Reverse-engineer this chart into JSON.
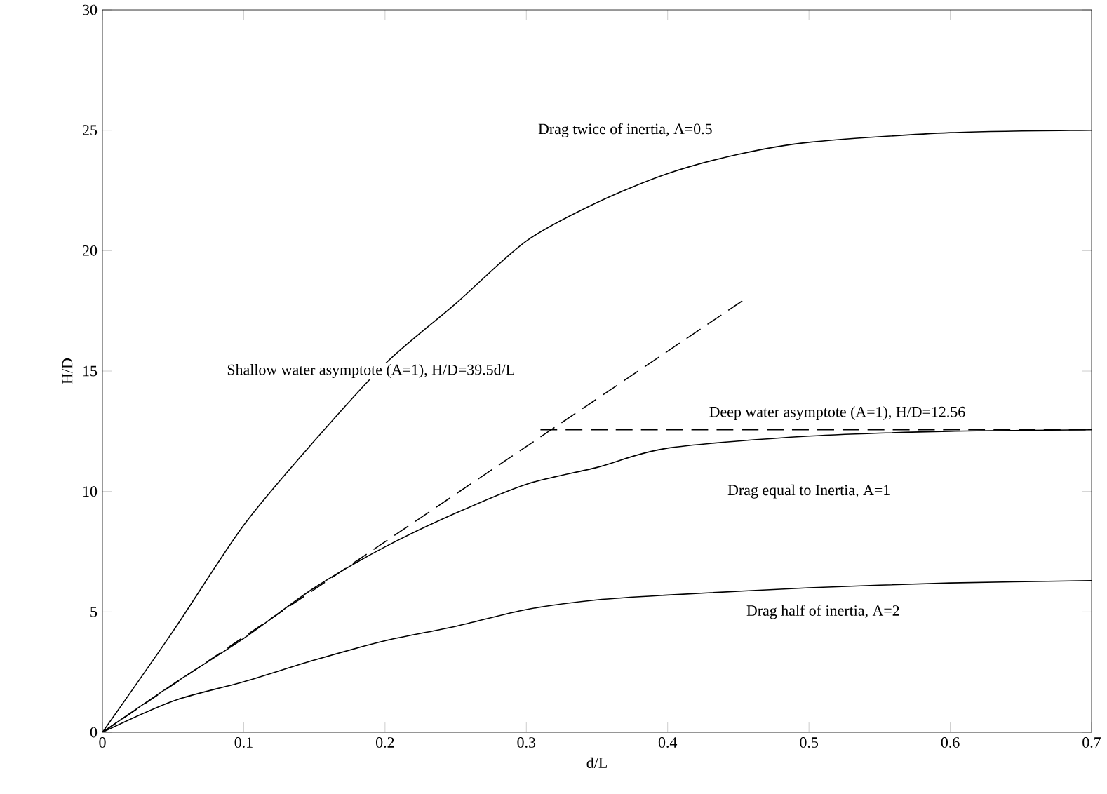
{
  "chart_data": {
    "type": "line",
    "xlabel": "d/L",
    "ylabel": "H/D",
    "xlim": [
      0,
      0.7
    ],
    "ylim": [
      0,
      30
    ],
    "xticks": [
      0,
      0.1,
      0.2,
      0.3,
      0.4,
      0.5,
      0.6,
      0.7
    ],
    "yticks": [
      0,
      5,
      10,
      15,
      20,
      25,
      30
    ],
    "grid": false,
    "series": [
      {
        "color": "#000000",
        "line_style": "solid",
        "x": [
          0,
          0.05,
          0.1,
          0.15,
          0.2,
          0.25,
          0.3,
          0.35,
          0.4,
          0.45,
          0.5,
          0.6,
          0.7
        ],
        "values": [
          0,
          4.2,
          8.6,
          12.1,
          15.3,
          17.8,
          20.4,
          22.0,
          23.2,
          24.0,
          24.5,
          24.9,
          25
        ]
      },
      {
        "color": "#000000",
        "line_style": "solid",
        "x": [
          0,
          0.05,
          0.1,
          0.15,
          0.2,
          0.25,
          0.3,
          0.35,
          0.4,
          0.5,
          0.6,
          0.7
        ],
        "values": [
          0,
          2.0,
          3.9,
          6.0,
          7.7,
          9.1,
          10.3,
          11.0,
          11.8,
          12.3,
          12.5,
          12.56
        ]
      },
      {
        "color": "#000000",
        "line_style": "solid",
        "x": [
          0,
          0.05,
          0.1,
          0.15,
          0.2,
          0.25,
          0.3,
          0.35,
          0.4,
          0.5,
          0.6,
          0.7
        ],
        "values": [
          0,
          1.3,
          2.1,
          3.0,
          3.8,
          4.4,
          5.1,
          5.5,
          5.7,
          6.0,
          6.2,
          6.3
        ]
      },
      {
        "color": "#000000",
        "line_style": "dashed",
        "x": [
          0,
          0.455
        ],
        "values": [
          0,
          18
        ]
      },
      {
        "color": "#000000",
        "line_style": "dashed",
        "x": [
          0.31,
          0.7
        ],
        "values": [
          12.56,
          12.56
        ]
      }
    ],
    "annotations": [
      "Drag twice of inertia, A=0.5",
      "Shallow water asymptote (A=1), H/D=39.5d/L",
      "Deep water asymptote (A=1), H/D=12.56",
      "Drag equal to Inertia, A=1",
      "Drag half of inertia, A=2"
    ]
  }
}
